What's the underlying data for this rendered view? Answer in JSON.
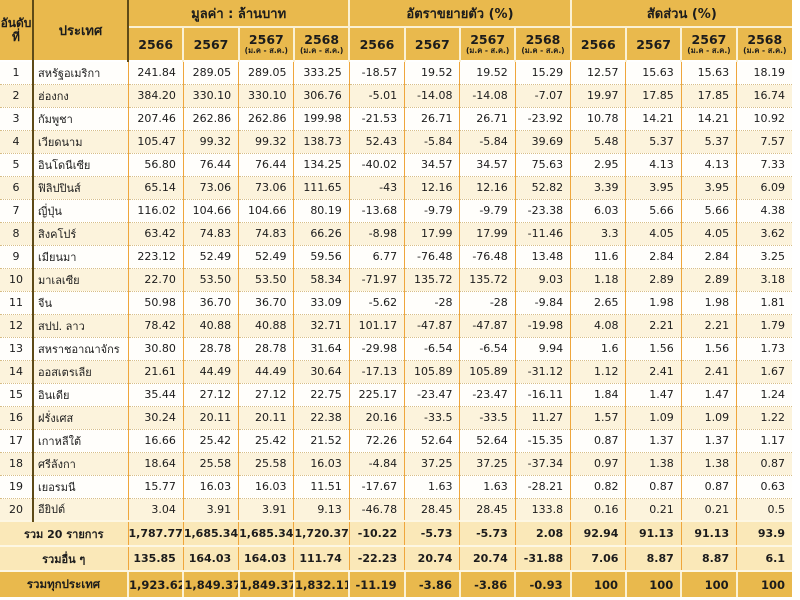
{
  "colors": {
    "header_gold": "#E9B94D",
    "border_orange": "#EFA63C",
    "row_alt_cream": "#FCF3DC",
    "summary_bg": "#FAE8B8",
    "dark_divider": "#5E4A17"
  },
  "table": {
    "headers": {
      "rank_line1": "อันดับ",
      "rank_line2": "ที่",
      "country": "ประเทศ",
      "groups": [
        {
          "label": "มูลค่า : ล้านบาท",
          "years": [
            {
              "label": "2566"
            },
            {
              "label": "2567"
            },
            {
              "label": "2567",
              "sub": "(ม.ค - ส.ค.)"
            },
            {
              "label": "2568",
              "sub": "(ม.ค - ส.ค.)"
            }
          ]
        },
        {
          "label": "อัตราขยายตัว (%)",
          "years": [
            {
              "label": "2566"
            },
            {
              "label": "2567"
            },
            {
              "label": "2567",
              "sub": "(ม.ค - ส.ค.)"
            },
            {
              "label": "2568",
              "sub": "(ม.ค - ส.ค.)"
            }
          ]
        },
        {
          "label": "สัดส่วน (%)",
          "years": [
            {
              "label": "2566"
            },
            {
              "label": "2567"
            },
            {
              "label": "2567",
              "sub": "(ม.ค - ส.ค.)"
            },
            {
              "label": "2568",
              "sub": "(ม.ค - ส.ค.)"
            }
          ]
        }
      ]
    },
    "rows": [
      {
        "rank": "1",
        "country": "สหรัฐอเมริกา",
        "values": [
          "241.84",
          "289.05",
          "289.05",
          "333.25",
          "-18.57",
          "19.52",
          "19.52",
          "15.29",
          "12.57",
          "15.63",
          "15.63",
          "18.19"
        ]
      },
      {
        "rank": "2",
        "country": "ฮ่องกง",
        "values": [
          "384.20",
          "330.10",
          "330.10",
          "306.76",
          "-5.01",
          "-14.08",
          "-14.08",
          "-7.07",
          "19.97",
          "17.85",
          "17.85",
          "16.74"
        ]
      },
      {
        "rank": "3",
        "country": "กัมพูชา",
        "values": [
          "207.46",
          "262.86",
          "262.86",
          "199.98",
          "-21.53",
          "26.71",
          "26.71",
          "-23.92",
          "10.78",
          "14.21",
          "14.21",
          "10.92"
        ]
      },
      {
        "rank": "4",
        "country": "เวียดนาม",
        "values": [
          "105.47",
          "99.32",
          "99.32",
          "138.73",
          "52.43",
          "-5.84",
          "-5.84",
          "39.69",
          "5.48",
          "5.37",
          "5.37",
          "7.57"
        ]
      },
      {
        "rank": "5",
        "country": "อินโดนีเซีย",
        "values": [
          "56.80",
          "76.44",
          "76.44",
          "134.25",
          "-40.02",
          "34.57",
          "34.57",
          "75.63",
          "2.95",
          "4.13",
          "4.13",
          "7.33"
        ]
      },
      {
        "rank": "6",
        "country": "ฟิลิปปินส์",
        "values": [
          "65.14",
          "73.06",
          "73.06",
          "111.65",
          "-43",
          "12.16",
          "12.16",
          "52.82",
          "3.39",
          "3.95",
          "3.95",
          "6.09"
        ]
      },
      {
        "rank": "7",
        "country": "ญี่ปุ่น",
        "values": [
          "116.02",
          "104.66",
          "104.66",
          "80.19",
          "-13.68",
          "-9.79",
          "-9.79",
          "-23.38",
          "6.03",
          "5.66",
          "5.66",
          "4.38"
        ]
      },
      {
        "rank": "8",
        "country": "สิงคโปร์",
        "values": [
          "63.42",
          "74.83",
          "74.83",
          "66.26",
          "-8.98",
          "17.99",
          "17.99",
          "-11.46",
          "3.3",
          "4.05",
          "4.05",
          "3.62"
        ]
      },
      {
        "rank": "9",
        "country": "เมียนมา",
        "values": [
          "223.12",
          "52.49",
          "52.49",
          "59.56",
          "6.77",
          "-76.48",
          "-76.48",
          "13.48",
          "11.6",
          "2.84",
          "2.84",
          "3.25"
        ]
      },
      {
        "rank": "10",
        "country": "มาเลเซีย",
        "values": [
          "22.70",
          "53.50",
          "53.50",
          "58.34",
          "-71.97",
          "135.72",
          "135.72",
          "9.03",
          "1.18",
          "2.89",
          "2.89",
          "3.18"
        ]
      },
      {
        "rank": "11",
        "country": "จีน",
        "values": [
          "50.98",
          "36.70",
          "36.70",
          "33.09",
          "-5.62",
          "-28",
          "-28",
          "-9.84",
          "2.65",
          "1.98",
          "1.98",
          "1.81"
        ]
      },
      {
        "rank": "12",
        "country": "สปป. ลาว",
        "values": [
          "78.42",
          "40.88",
          "40.88",
          "32.71",
          "101.17",
          "-47.87",
          "-47.87",
          "-19.98",
          "4.08",
          "2.21",
          "2.21",
          "1.79"
        ]
      },
      {
        "rank": "13",
        "country": "สหราชอาณาจักร",
        "values": [
          "30.80",
          "28.78",
          "28.78",
          "31.64",
          "-29.98",
          "-6.54",
          "-6.54",
          "9.94",
          "1.6",
          "1.56",
          "1.56",
          "1.73"
        ]
      },
      {
        "rank": "14",
        "country": "ออสเตรเลีย",
        "values": [
          "21.61",
          "44.49",
          "44.49",
          "30.64",
          "-17.13",
          "105.89",
          "105.89",
          "-31.12",
          "1.12",
          "2.41",
          "2.41",
          "1.67"
        ]
      },
      {
        "rank": "15",
        "country": "อินเดีย",
        "values": [
          "35.44",
          "27.12",
          "27.12",
          "22.75",
          "225.17",
          "-23.47",
          "-23.47",
          "-16.11",
          "1.84",
          "1.47",
          "1.47",
          "1.24"
        ]
      },
      {
        "rank": "16",
        "country": "ฝรั่งเศส",
        "values": [
          "30.24",
          "20.11",
          "20.11",
          "22.38",
          "20.16",
          "-33.5",
          "-33.5",
          "11.27",
          "1.57",
          "1.09",
          "1.09",
          "1.22"
        ]
      },
      {
        "rank": "17",
        "country": "เกาหลีใต้",
        "values": [
          "16.66",
          "25.42",
          "25.42",
          "21.52",
          "72.26",
          "52.64",
          "52.64",
          "-15.35",
          "0.87",
          "1.37",
          "1.37",
          "1.17"
        ]
      },
      {
        "rank": "18",
        "country": "ศรีลังกา",
        "values": [
          "18.64",
          "25.58",
          "25.58",
          "16.03",
          "-4.84",
          "37.25",
          "37.25",
          "-37.34",
          "0.97",
          "1.38",
          "1.38",
          "0.87"
        ]
      },
      {
        "rank": "19",
        "country": "เยอรมนี",
        "values": [
          "15.77",
          "16.03",
          "16.03",
          "11.51",
          "-17.67",
          "1.63",
          "1.63",
          "-28.21",
          "0.82",
          "0.87",
          "0.87",
          "0.63"
        ]
      },
      {
        "rank": "20",
        "country": "อียิปต์",
        "values": [
          "3.04",
          "3.91",
          "3.91",
          "9.13",
          "-46.78",
          "28.45",
          "28.45",
          "133.8",
          "0.16",
          "0.21",
          "0.21",
          "0.5"
        ]
      }
    ],
    "summary": [
      {
        "label": "รวม 20 รายการ",
        "values": [
          "1,787.77",
          "1,685.34",
          "1,685.34",
          "1,720.37",
          "-10.22",
          "-5.73",
          "-5.73",
          "2.08",
          "92.94",
          "91.13",
          "91.13",
          "93.9"
        ]
      },
      {
        "label": "รวมอื่น ๆ",
        "values": [
          "135.85",
          "164.03",
          "164.03",
          "111.74",
          "-22.23",
          "20.74",
          "20.74",
          "-31.88",
          "7.06",
          "8.87",
          "8.87",
          "6.1"
        ]
      },
      {
        "label": "รวมทุกประเทศ",
        "values": [
          "1,923.62",
          "1,849.37",
          "1,849.37",
          "1,832.11",
          "-11.19",
          "-3.86",
          "-3.86",
          "-0.93",
          "100",
          "100",
          "100",
          "100"
        ]
      }
    ]
  }
}
